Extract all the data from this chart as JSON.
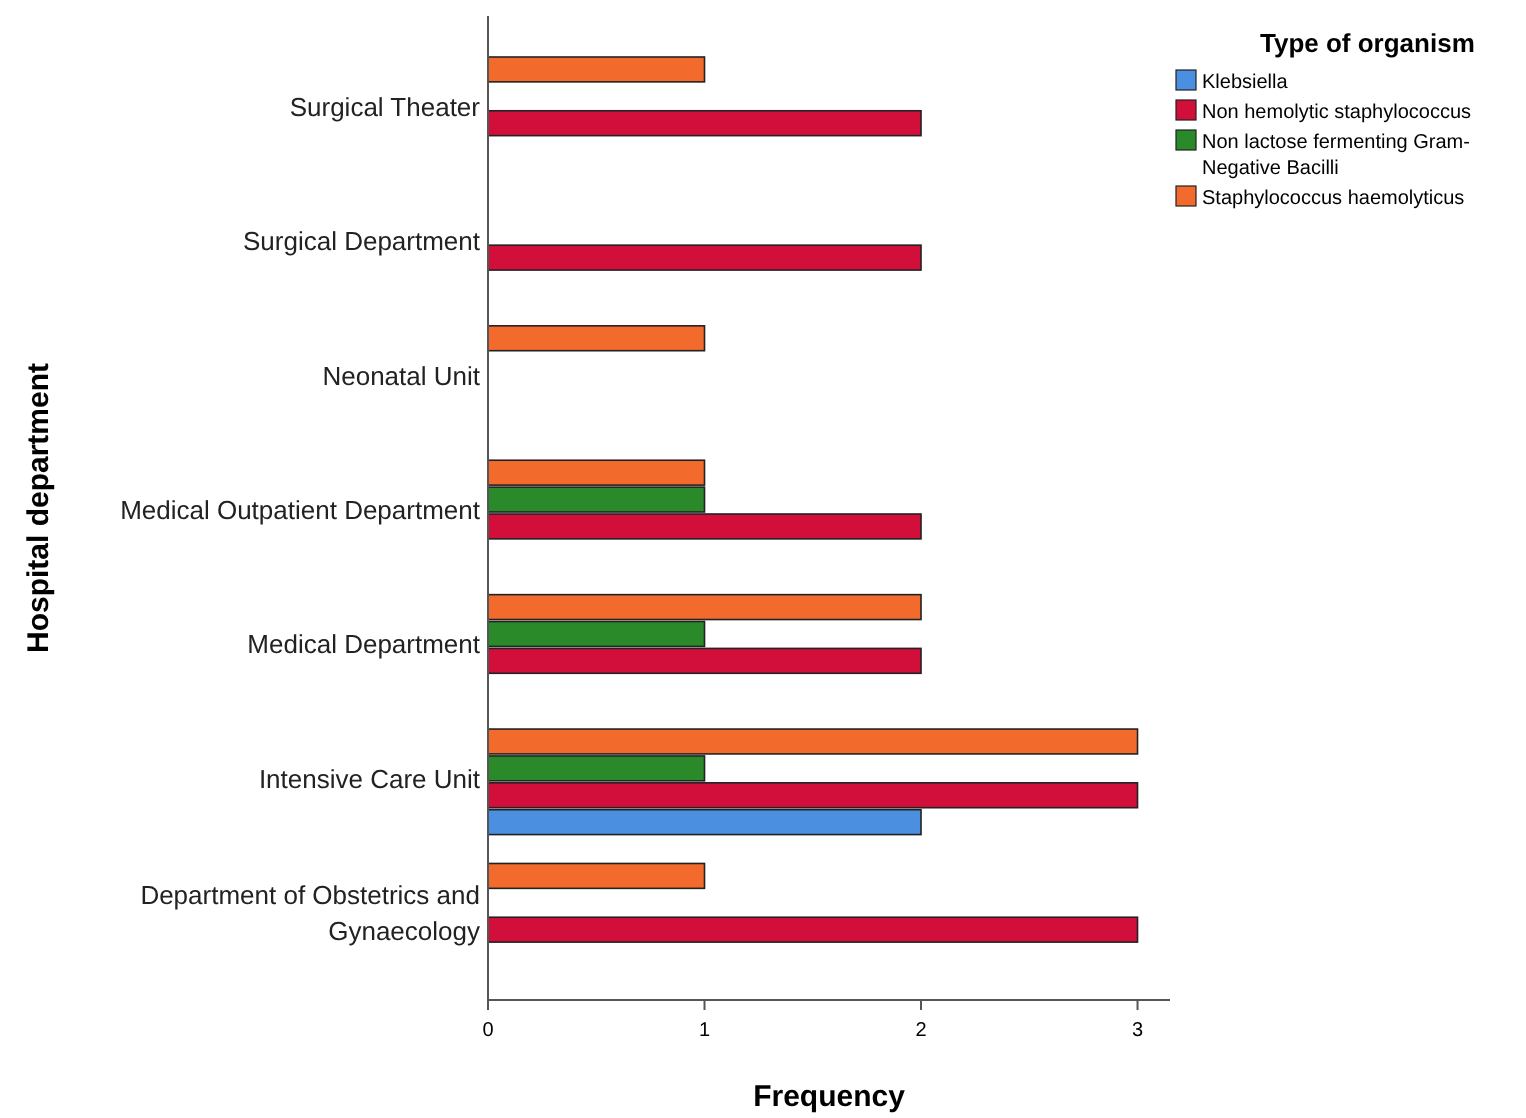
{
  "chart_data": {
    "type": "bar",
    "orientation": "horizontal",
    "xlabel": "Frequency",
    "ylabel": "Hospital department",
    "legend_title": "Type of organism",
    "legend": "top right",
    "categories": [
      "Surgical Theater",
      "Surgical Department",
      "Neonatal Unit",
      "Medical Outpatient Department",
      "Medical Department",
      "Intensive Care Unit",
      "Department of Obstetrics and Gynaecology"
    ],
    "series": [
      {
        "name": "Klebsiella",
        "color": "#4a8fe0",
        "values": [
          null,
          null,
          null,
          null,
          null,
          2,
          null
        ]
      },
      {
        "name": "Non hemolytic staphylococcus",
        "color": "#d20f3b",
        "values": [
          2,
          2,
          null,
          2,
          2,
          3,
          3
        ]
      },
      {
        "name": "Non lactose fermenting Gram-Negative Bacilli",
        "color": "#2a8a2a",
        "values": [
          null,
          null,
          null,
          1,
          1,
          1,
          null
        ]
      },
      {
        "name": "Staphylococcus haemolyticus",
        "color": "#f26b2c",
        "values": [
          1,
          null,
          1,
          1,
          2,
          3,
          1
        ]
      }
    ],
    "xlim": [
      0,
      3.15
    ],
    "xticks": [
      0,
      1,
      2,
      3
    ],
    "grid": false
  }
}
